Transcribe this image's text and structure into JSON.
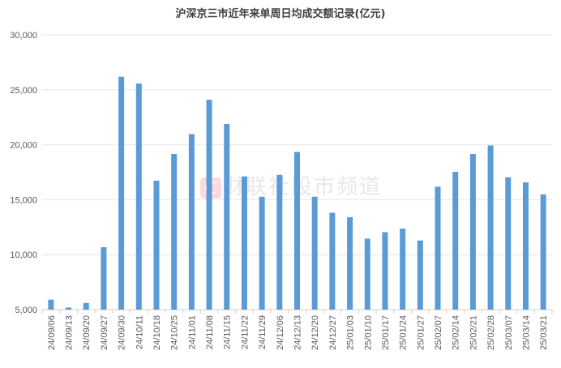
{
  "chart_data": {
    "type": "bar",
    "title": "沪深京三市近年来单周日均成交额记录(亿元)",
    "xlabel": "",
    "ylabel": "",
    "ylim": [
      5000,
      30000
    ],
    "yticks": [
      "5,000",
      "10,000",
      "15,000",
      "20,000",
      "25,000",
      "30,000"
    ],
    "ytick_values": [
      5000,
      10000,
      15000,
      20000,
      25000,
      30000
    ],
    "grid": true,
    "bar_color": "#5b9bd5",
    "categories": [
      "24/09/06",
      "24/09/13",
      "24/09/20",
      "24/09/27",
      "24/09/30",
      "24/10/11",
      "24/10/18",
      "24/10/25",
      "24/11/01",
      "24/11/08",
      "24/11/15",
      "24/11/22",
      "24/11/29",
      "24/12/06",
      "24/12/13",
      "24/12/20",
      "24/12/27",
      "25/01/03",
      "25/01/10",
      "25/01/17",
      "25/01/24",
      "25/01/27",
      "25/02/07",
      "25/02/14",
      "25/02/21",
      "25/02/28",
      "25/03/07",
      "25/03/14",
      "25/03/21"
    ],
    "values": [
      5910,
      5190,
      5610,
      10680,
      26190,
      25570,
      16730,
      19160,
      20970,
      24100,
      21890,
      17120,
      15270,
      17260,
      19350,
      15270,
      13820,
      13410,
      11460,
      12050,
      12370,
      11290,
      16180,
      17540,
      19160,
      19940,
      17040,
      16580,
      15490
    ]
  },
  "watermark": {
    "logo": "C",
    "text": "财联社股市频道"
  }
}
